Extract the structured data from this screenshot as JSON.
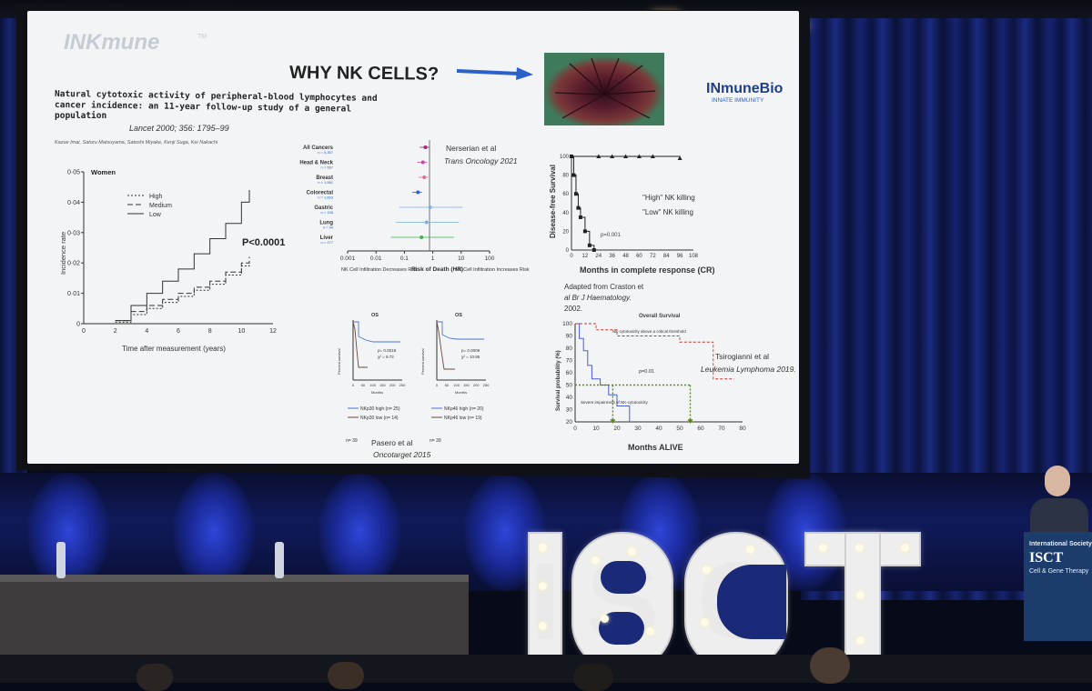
{
  "slide": {
    "logo_left": "INKmune",
    "logo_left_tm": "TM",
    "title": "WHY NK CELLS?",
    "logo_right": "INmuneBio",
    "logo_right_sub": "INNATE IMMUNITY",
    "paper_title_1": "Natural cytotoxic activity of peripheral-blood lymphocytes and",
    "paper_title_2": "cancer incidence: an 11-year follow-up study of a general",
    "paper_title_3": "population",
    "journal": "Lancet 2000; 356: 1795–99",
    "authors": "Kazue Imai, Satoru Matsuyama, Satoshi Miyake, Kenji Suga, Kei Nakachi"
  },
  "chart_incidence": {
    "type": "line",
    "title": "Women",
    "legend": [
      "High",
      "Medium",
      "Low"
    ],
    "pvalue": "P<0.0001",
    "ylabel": "Incidence rate",
    "xlabel": "Time after measurement (years)",
    "yticks": [
      "0·05",
      "0·04",
      "0·03",
      "0·02",
      "0·01",
      "0"
    ],
    "xticks": [
      "0",
      "2",
      "4",
      "6",
      "8",
      "10",
      "12"
    ],
    "xlim": [
      0,
      12
    ],
    "ylim": [
      0,
      0.05
    ],
    "series": [
      {
        "name": "Low",
        "x": [
          2,
          3,
          4,
          5,
          6,
          7,
          8,
          9,
          10,
          10.5
        ],
        "y": [
          0.001,
          0.006,
          0.01,
          0.014,
          0.018,
          0.023,
          0.028,
          0.033,
          0.04,
          0.044
        ]
      },
      {
        "name": "Medium",
        "x": [
          2,
          3,
          4,
          5,
          6,
          7,
          8,
          9,
          10,
          10.5
        ],
        "y": [
          0.001,
          0.004,
          0.006,
          0.008,
          0.01,
          0.012,
          0.014,
          0.017,
          0.02,
          0.022
        ]
      },
      {
        "name": "High",
        "x": [
          2,
          3,
          4,
          5,
          6,
          7,
          8,
          9,
          10,
          10.5
        ],
        "y": [
          0.0005,
          0.003,
          0.005,
          0.007,
          0.009,
          0.011,
          0.013,
          0.016,
          0.019,
          0.021
        ]
      }
    ]
  },
  "chart_forest": {
    "type": "scatter",
    "citation": "Nerserian et al",
    "citation_journal": "Trans Oncology 2021",
    "rows": [
      {
        "label": "All Cancers",
        "n": "n = 5,357",
        "hr": 0.55
      },
      {
        "label": "Head & Neck",
        "n": "n = 567",
        "hr": 0.45
      },
      {
        "label": "Breast",
        "n": "n = 1,581",
        "hr": 0.5
      },
      {
        "label": "Colorectal",
        "n": "n = 1,663",
        "hr": 0.3
      },
      {
        "label": "Gastric",
        "n": "n = 155",
        "hr": 0.8
      },
      {
        "label": "Lung",
        "n": "n = 94",
        "hr": 0.6
      },
      {
        "label": "Liver",
        "n": "n = 277",
        "hr": 0.4
      }
    ],
    "xticks": [
      "0.001",
      "0.01",
      "0.1",
      "1",
      "10",
      "100"
    ],
    "xlabel_left": "NK Cell Infiltration Decreases Risk",
    "xlabel_mid": "Risk of Death (HR)",
    "xlabel_right": "NK Cell Infiltration Increases Risk"
  },
  "chart_dfs": {
    "type": "line",
    "ylabel": "Disease-free Survival",
    "xlabel": "Months in complete response (CR)",
    "yticks": [
      "100",
      "80",
      "60",
      "40",
      "20",
      "0"
    ],
    "xticks": [
      "0",
      "12",
      "24",
      "36",
      "48",
      "60",
      "72",
      "84",
      "96",
      "108"
    ],
    "xlim": [
      0,
      108
    ],
    "ylim": [
      0,
      100
    ],
    "label_high": "\"High\" NK killing",
    "label_low": "\"Low\" NK killing",
    "pvalue": "p=0.001",
    "series": [
      {
        "name": "\"High\" NK killing",
        "x": [
          0,
          24,
          36,
          48,
          60,
          72,
          96
        ],
        "y": [
          100,
          100,
          100,
          100,
          100,
          100,
          98
        ]
      },
      {
        "name": "\"Low\" NK killing",
        "x": [
          0,
          2,
          4,
          6,
          8,
          12,
          16,
          20
        ],
        "y": [
          100,
          80,
          60,
          45,
          35,
          20,
          5,
          0
        ]
      }
    ],
    "source_1": "Adapted from Craston et",
    "source_2": "al Br J Haematology.",
    "source_3": "2002."
  },
  "chart_os": {
    "type": "line",
    "title": "Overall Survival",
    "ylabel": "Survival probability (%)",
    "xlabel": "Months ALIVE",
    "yticks": [
      "100",
      "90",
      "80",
      "70",
      "60",
      "50",
      "40",
      "30",
      "20"
    ],
    "xticks": [
      "0",
      "10",
      "20",
      "30",
      "40",
      "50",
      "60",
      "70",
      "80"
    ],
    "xlim": [
      0,
      80
    ],
    "ylim": [
      20,
      100
    ],
    "annotation_above": "NK-cytotoxicity above a critical threshold",
    "annotation_below": "Severe impairment of NK-cytotoxicity",
    "pvalue": "p=0.01",
    "citation": "Tsirogianni et al",
    "citation_journal": "Leukemia Lymphoma 2019."
  },
  "chart_pasero": {
    "left_title": "OS",
    "right_title": "OS",
    "left_p": "p= 0.0018",
    "left_x2": "χ² = 9.72",
    "right_p": "p= 0.0009",
    "right_x2": "χ² = 10.86",
    "ylabel": "Percent survival",
    "xlabel": "Months",
    "xticks": [
      "0",
      "50",
      "100",
      "150",
      "200",
      "250"
    ],
    "left_legend_high": "NKp30 high (n= 25)",
    "left_legend_low": "NKp30 low (n= 14)",
    "right_legend_high": "NKp46 high (n= 20)",
    "right_legend_low": "NKp46 low (n= 19)",
    "left_n": "n= 39",
    "right_n": "n= 39",
    "citation": "Pasero et al",
    "citation_journal": "Oncotarget 2015"
  },
  "stage": {
    "letters": [
      "I",
      "S",
      "C",
      "T"
    ],
    "podium_line1": "International Society",
    "podium_line2": "ISCT",
    "podium_line3": "Cell & Gene Therapy"
  },
  "colors": {
    "slide_bg": "#f2f4f6",
    "arrow": "#2a62c9",
    "forest_colors": [
      "#a0257a",
      "#c84a9e",
      "#e0708a",
      "#2a62c9",
      "#7fb0e8",
      "#7ab0d9",
      "#3cb24a"
    ],
    "curtain": "#162370"
  }
}
